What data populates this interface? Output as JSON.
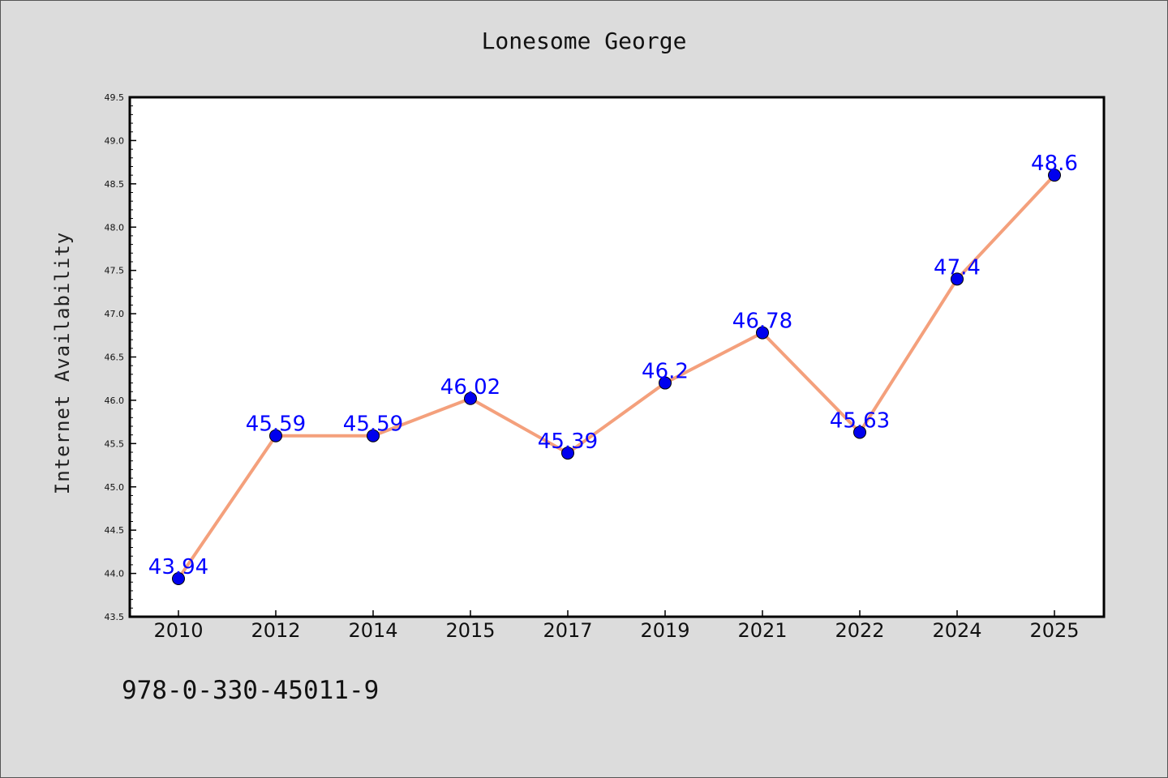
{
  "chart_data": {
    "type": "line",
    "title": "Lonesome George",
    "xlabel": "",
    "ylabel": "Internet Availability",
    "categories": [
      "2010",
      "2012",
      "2014",
      "2015",
      "2017",
      "2019",
      "2021",
      "2022",
      "2024",
      "2025"
    ],
    "series": [
      {
        "values": [
          43.94,
          45.59,
          45.59,
          46.02,
          45.39,
          46.2,
          46.78,
          45.63,
          47.4,
          48.6
        ],
        "labels": [
          "43.94",
          "45.59",
          "45.59",
          "46.02",
          "45.39",
          "46.2",
          "46.78",
          "45.63",
          "47.4",
          "48.6"
        ],
        "line_color": "#f4a07c",
        "marker_color": "#0000ee"
      }
    ],
    "ylim": [
      43.5,
      49.5
    ],
    "yticks": [
      "43.5",
      "44.0",
      "44.5",
      "45.0",
      "45.5",
      "46.0",
      "46.5",
      "47.0",
      "47.5",
      "48.0",
      "48.5",
      "49.0",
      "49.5"
    ],
    "grid": false,
    "label_color": "#0000ff"
  },
  "footnote": "978-0-330-45011-9"
}
